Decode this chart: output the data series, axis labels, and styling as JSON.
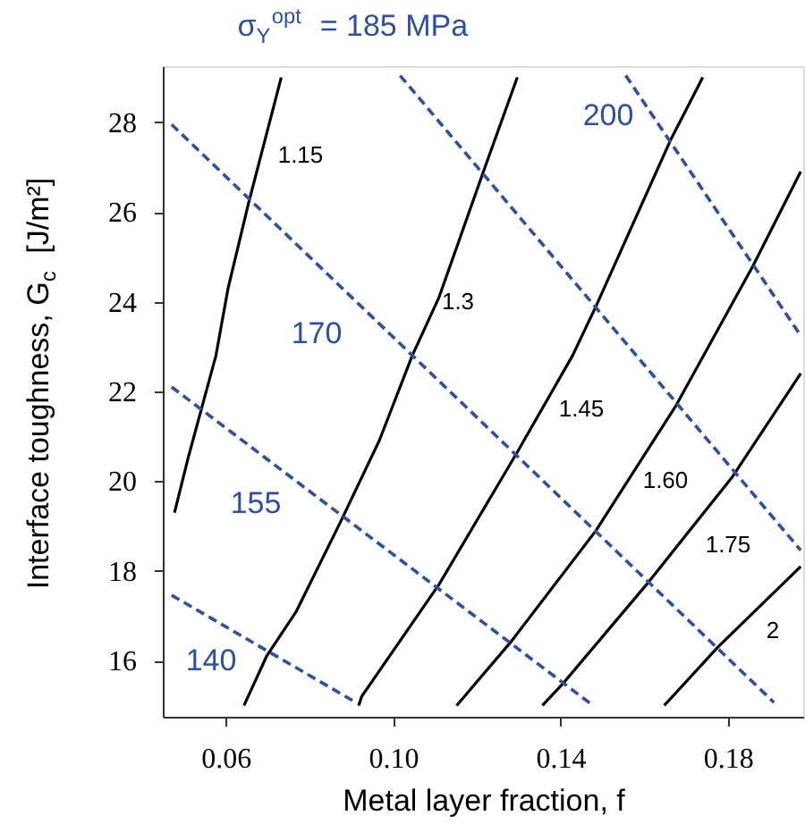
{
  "chart_data": {
    "type": "line",
    "title": "σ$_{Y}$$^{opt}$ = 185 MPa",
    "xlabel": "Metal layer fraction, f",
    "ylabel": "Interface toughness, G$_{c}$ [J/m²]",
    "xlim": [
      0.045,
      0.198
    ],
    "ylim": [
      14.75,
      29.25
    ],
    "xticks": [
      0.06,
      {
        "value": 0.1,
        "label": "0.10"
      },
      0.14,
      0.18
    ],
    "yticks": [
      16,
      18,
      20,
      22,
      24,
      26,
      28
    ],
    "grid": false,
    "marker": "none",
    "series": [
      {
        "color": "#000000",
        "line_style": "solid",
        "x": [
          0.0478,
          0.051,
          0.0542,
          0.0577,
          0.0606,
          0.0655,
          0.0733
        ],
        "values": [
          19.3,
          20.5,
          21.6,
          22.8,
          24.3,
          26.2,
          29.0
        ]
      },
      {
        "color": "#000000",
        "line_style": "solid",
        "x": [
          0.0644,
          0.0698,
          0.0769,
          0.0875,
          0.0967,
          0.1046,
          0.111,
          0.1216,
          0.1297
        ],
        "values": [
          15.0,
          16.1,
          17.1,
          19.1,
          20.9,
          22.8,
          24.1,
          26.9,
          29.0
        ]
      },
      {
        "color": "#000000",
        "line_style": "solid",
        "x": [
          0.0918,
          0.0925,
          0.111,
          0.1294,
          0.1429,
          0.1485,
          0.1663,
          0.174
        ],
        "values": [
          15.0,
          15.2,
          17.7,
          20.6,
          22.8,
          23.9,
          27.6,
          29.0
        ]
      },
      {
        "color": "#000000",
        "line_style": "solid",
        "x": [
          0.1152,
          0.128,
          0.1485,
          0.1677,
          0.186,
          0.1974
        ],
        "values": [
          15.0,
          16.4,
          18.9,
          21.7,
          24.8,
          26.9
        ]
      },
      {
        "color": "#000000",
        "line_style": "solid",
        "x": [
          0.1357,
          0.1407,
          0.1606,
          0.1811,
          0.1974
        ],
        "values": [
          15.0,
          15.5,
          17.7,
          20.1,
          22.4
        ]
      },
      {
        "color": "#000000",
        "line_style": "solid",
        "x": [
          0.1648,
          0.1776,
          0.1974
        ],
        "values": [
          15.0,
          16.3,
          18.1
        ]
      },
      {
        "color": "#2d4fa6",
        "line_style": "dashed",
        "x": [
          0.0471,
          0.0911
        ],
        "values": [
          17.46,
          15.07
        ]
      },
      {
        "color": "#2d4fa6",
        "line_style": "dashed",
        "x": [
          0.0471,
          0.1478
        ],
        "values": [
          22.1,
          15.0
        ]
      },
      {
        "color": "#2d4fa6",
        "line_style": "dashed",
        "x": [
          0.0471,
          0.191
        ],
        "values": [
          27.95,
          15.07
        ]
      },
      {
        "color": "#2d4fa6",
        "line_style": "dashed",
        "x": [
          0.1017,
          0.1974
        ],
        "values": [
          29.04,
          18.46
        ]
      },
      {
        "color": "#2d4fa6",
        "line_style": "dashed",
        "x": [
          0.1556,
          0.197
        ],
        "values": [
          29.04,
          23.3
        ]
      }
    ],
    "annotations": [
      "1.15",
      "1.3",
      "1.45",
      "1.60",
      "1.75",
      "2",
      "140",
      "155",
      "170",
      "200"
    ]
  }
}
